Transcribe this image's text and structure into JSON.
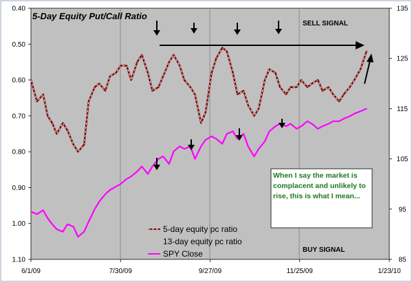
{
  "chart_data": {
    "type": "line",
    "title": "5-Day Equity Put/Call Ratio",
    "x_tick_labels": [
      "6/1/09",
      "7/30/09",
      "9/27/09",
      "11/25/09",
      "1/23/10"
    ],
    "x_range": [
      "6/1/09",
      "1/23/10"
    ],
    "left_axis": {
      "inverted": true,
      "ylim": [
        0.4,
        1.1
      ],
      "tick_labels": [
        "0.40",
        "0.50",
        "0.60",
        "0.70",
        "0.80",
        "0.90",
        "1.00",
        "1.10"
      ]
    },
    "right_axis": {
      "ylim": [
        85,
        135
      ],
      "tick_labels": [
        "135",
        "125",
        "115",
        "105",
        "95",
        "85"
      ]
    },
    "legend_position": "bottom-center",
    "series": [
      {
        "name": "5-day equity pc ratio",
        "axis": "left",
        "color": "#7a0000",
        "dashed_overlay": true,
        "x": [
          "6/1/09",
          "6/5/09",
          "6/9/09",
          "6/12/09",
          "6/15/09",
          "6/18/09",
          "6/22/09",
          "6/25/09",
          "6/29/09",
          "7/2/09",
          "7/6/09",
          "7/9/09",
          "7/13/09",
          "7/16/09",
          "7/20/09",
          "7/23/09",
          "7/27/09",
          "7/30/09",
          "8/3/09",
          "8/6/09",
          "8/10/09",
          "8/13/09",
          "8/17/09",
          "8/20/09",
          "8/24/09",
          "8/27/09",
          "8/31/09",
          "9/3/09",
          "9/7/09",
          "9/10/09",
          "9/14/09",
          "9/17/09",
          "9/21/09",
          "9/24/09",
          "9/28/09",
          "10/1/09",
          "10/5/09",
          "10/8/09",
          "10/12/09",
          "10/15/09",
          "10/19/09",
          "10/22/09",
          "10/26/09",
          "10/29/09",
          "11/2/09",
          "11/5/09",
          "11/9/09",
          "11/12/09",
          "11/16/09",
          "11/19/09",
          "11/23/09",
          "11/26/09",
          "11/30/09",
          "12/3/09",
          "12/7/09",
          "12/10/09",
          "12/14/09",
          "12/17/09",
          "12/21/09",
          "12/24/09",
          "12/28/09",
          "12/31/09",
          "1/4/10",
          "1/8/10"
        ],
        "y": [
          0.6,
          0.66,
          0.64,
          0.7,
          0.72,
          0.75,
          0.72,
          0.74,
          0.78,
          0.8,
          0.78,
          0.66,
          0.62,
          0.61,
          0.63,
          0.59,
          0.58,
          0.56,
          0.56,
          0.6,
          0.55,
          0.53,
          0.58,
          0.63,
          0.62,
          0.59,
          0.55,
          0.53,
          0.56,
          0.6,
          0.62,
          0.64,
          0.72,
          0.69,
          0.58,
          0.54,
          0.51,
          0.52,
          0.58,
          0.64,
          0.63,
          0.67,
          0.7,
          0.68,
          0.6,
          0.57,
          0.58,
          0.62,
          0.64,
          0.62,
          0.62,
          0.6,
          0.62,
          0.61,
          0.6,
          0.63,
          0.62,
          0.64,
          0.66,
          0.64,
          0.62,
          0.6,
          0.57,
          0.52
        ]
      },
      {
        "name": "SPY Close",
        "axis": "right",
        "color": "#ff00ff",
        "x": [
          "6/1/09",
          "6/5/09",
          "6/9/09",
          "6/12/09",
          "6/15/09",
          "6/18/09",
          "6/22/09",
          "6/25/09",
          "6/29/09",
          "7/2/09",
          "7/6/09",
          "7/9/09",
          "7/13/09",
          "7/16/09",
          "7/20/09",
          "7/23/09",
          "7/27/09",
          "7/30/09",
          "8/3/09",
          "8/6/09",
          "8/10/09",
          "8/13/09",
          "8/17/09",
          "8/20/09",
          "8/24/09",
          "8/27/09",
          "8/31/09",
          "9/3/09",
          "9/7/09",
          "9/10/09",
          "9/14/09",
          "9/17/09",
          "9/21/09",
          "9/24/09",
          "9/28/09",
          "10/1/09",
          "10/5/09",
          "10/8/09",
          "10/12/09",
          "10/15/09",
          "10/19/09",
          "10/22/09",
          "10/26/09",
          "10/29/09",
          "11/2/09",
          "11/5/09",
          "11/9/09",
          "11/12/09",
          "11/16/09",
          "11/19/09",
          "11/23/09",
          "11/26/09",
          "11/30/09",
          "12/3/09",
          "12/7/09",
          "12/10/09",
          "12/14/09",
          "12/17/09",
          "12/21/09",
          "12/24/09",
          "12/28/09",
          "12/31/09",
          "1/4/10",
          "1/8/10"
        ],
        "y": [
          94.5,
          94.0,
          94.8,
          93.2,
          92.0,
          91.0,
          90.5,
          92.0,
          91.5,
          89.5,
          90.5,
          92.5,
          95.0,
          96.5,
          98.0,
          98.8,
          99.5,
          100.0,
          101.0,
          101.5,
          102.5,
          103.5,
          102.0,
          103.5,
          105.0,
          105.5,
          104.0,
          106.5,
          107.5,
          107.0,
          107.5,
          105.0,
          107.5,
          108.8,
          109.5,
          109.0,
          108.0,
          110.0,
          110.5,
          109.0,
          110.0,
          107.5,
          105.5,
          107.0,
          108.5,
          110.5,
          111.5,
          112.0,
          111.5,
          112.0,
          111.0,
          111.5,
          112.5,
          112.0,
          111.0,
          111.5,
          112.0,
          112.5,
          112.5,
          113.0,
          113.5,
          114.0,
          114.5,
          115.0
        ]
      }
    ],
    "legend_entries": [
      "5-day equity pc ratio",
      "13-day equity pc ratio",
      "SPY Close"
    ],
    "annotations": {
      "sell_signal": "SELL SIGNAL",
      "buy_signal": "BUY SIGNAL",
      "note": "When I say the market is complacent and unlikely to rise, this is what I mean..."
    }
  }
}
